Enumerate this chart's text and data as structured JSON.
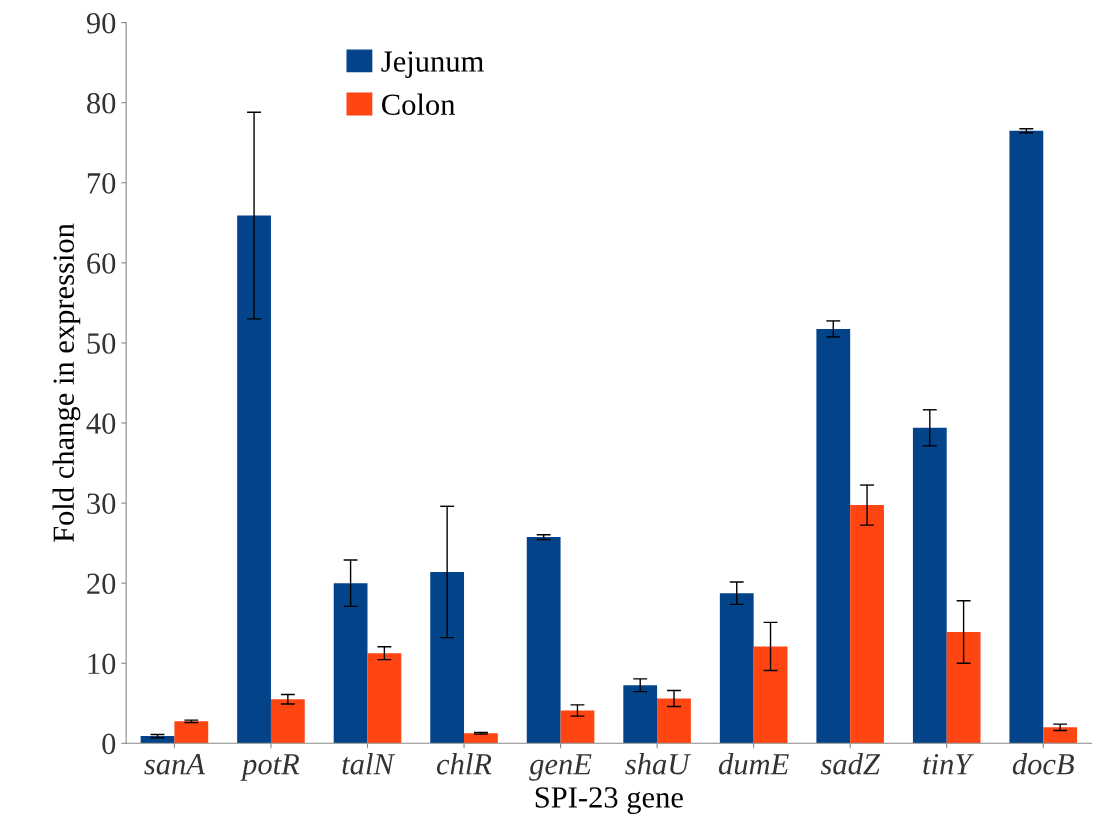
{
  "chart_data": {
    "type": "bar",
    "xlabel": "SPI-23 gene",
    "ylabel": "Fold change in expression",
    "categories": [
      "sanA",
      "potR",
      "talN",
      "chlR",
      "genE",
      "shaU",
      "dumE",
      "sadZ",
      "tinY",
      "docB"
    ],
    "series": [
      {
        "name": "Jejunum",
        "color": "#024389",
        "values": [
          0.9,
          65.9,
          20,
          21.4,
          25.75,
          7.25,
          18.75,
          51.75,
          39.4,
          76.5
        ],
        "errors": [
          0.2,
          12.9,
          2.9,
          8.2,
          0.3,
          0.8,
          1.4,
          1.0,
          2.25,
          0.25
        ]
      },
      {
        "name": "Colon",
        "color": "#ff4512",
        "values": [
          2.75,
          5.5,
          11.25,
          1.25,
          4.1,
          5.6,
          12.1,
          29.75,
          13.9,
          2.0
        ],
        "errors": [
          0.15,
          0.6,
          0.8,
          0.1,
          0.7,
          1.0,
          3.0,
          2.5,
          3.9,
          0.4
        ]
      }
    ],
    "ylim": [
      0,
      90
    ],
    "yticks": [
      0,
      10,
      20,
      30,
      40,
      50,
      60,
      70,
      80,
      90
    ],
    "grid": false,
    "legend": "top"
  }
}
